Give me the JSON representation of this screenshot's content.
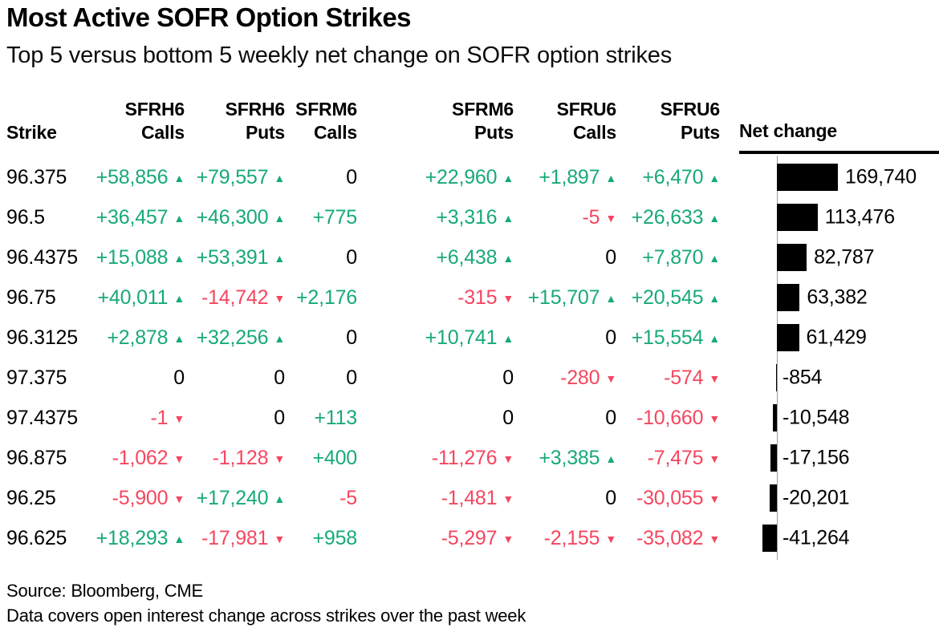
{
  "header": {
    "title": "Most Active SOFR Option Strikes",
    "subtitle": "Top 5 versus bottom 5 weekly net change on SOFR option strikes"
  },
  "table": {
    "columns": [
      {
        "line1": "",
        "line2": "Strike"
      },
      {
        "line1": "SFRH6",
        "line2": "Calls"
      },
      {
        "line1": "SFRH6",
        "line2": "Puts"
      },
      {
        "line1": "SFRM6",
        "line2": "Calls"
      },
      {
        "line1": "SFRM6",
        "line2": "Puts"
      },
      {
        "line1": "SFRU6",
        "line2": "Calls"
      },
      {
        "line1": "SFRU6",
        "line2": "Puts"
      },
      {
        "line1": "",
        "line2": "Net change"
      }
    ],
    "rows": [
      {
        "strike": "96.375",
        "cells": [
          {
            "v": "+58,856",
            "a": "up"
          },
          {
            "v": "+79,557",
            "a": "up"
          },
          {
            "v": "0",
            "a": ""
          },
          {
            "v": "+22,960",
            "a": "up"
          },
          {
            "v": "+1,897",
            "a": "up"
          },
          {
            "v": "+6,470",
            "a": "up"
          }
        ],
        "net": 169740,
        "net_label": "169,740"
      },
      {
        "strike": "96.5",
        "cells": [
          {
            "v": "+36,457",
            "a": "up"
          },
          {
            "v": "+46,300",
            "a": "up"
          },
          {
            "v": "+775",
            "a": ""
          },
          {
            "v": "+3,316",
            "a": "up"
          },
          {
            "v": "-5",
            "a": "down"
          },
          {
            "v": "+26,633",
            "a": "up"
          }
        ],
        "net": 113476,
        "net_label": "113,476"
      },
      {
        "strike": "96.4375",
        "cells": [
          {
            "v": "+15,088",
            "a": "up"
          },
          {
            "v": "+53,391",
            "a": "up"
          },
          {
            "v": "0",
            "a": ""
          },
          {
            "v": "+6,438",
            "a": "up"
          },
          {
            "v": "0",
            "a": ""
          },
          {
            "v": "+7,870",
            "a": "up"
          }
        ],
        "net": 82787,
        "net_label": "82,787"
      },
      {
        "strike": "96.75",
        "cells": [
          {
            "v": "+40,011",
            "a": "up"
          },
          {
            "v": "-14,742",
            "a": "down"
          },
          {
            "v": "+2,176",
            "a": ""
          },
          {
            "v": "-315",
            "a": "down"
          },
          {
            "v": "+15,707",
            "a": "up"
          },
          {
            "v": "+20,545",
            "a": "up"
          }
        ],
        "net": 63382,
        "net_label": "63,382"
      },
      {
        "strike": "96.3125",
        "cells": [
          {
            "v": "+2,878",
            "a": "up"
          },
          {
            "v": "+32,256",
            "a": "up"
          },
          {
            "v": "0",
            "a": ""
          },
          {
            "v": "+10,741",
            "a": "up"
          },
          {
            "v": "0",
            "a": ""
          },
          {
            "v": "+15,554",
            "a": "up"
          }
        ],
        "net": 61429,
        "net_label": "61,429"
      },
      {
        "strike": "97.375",
        "cells": [
          {
            "v": "0",
            "a": ""
          },
          {
            "v": "0",
            "a": ""
          },
          {
            "v": "0",
            "a": ""
          },
          {
            "v": "0",
            "a": ""
          },
          {
            "v": "-280",
            "a": "down"
          },
          {
            "v": "-574",
            "a": "down"
          }
        ],
        "net": -854,
        "net_label": "-854"
      },
      {
        "strike": "97.4375",
        "cells": [
          {
            "v": "-1",
            "a": "down"
          },
          {
            "v": "0",
            "a": ""
          },
          {
            "v": "+113",
            "a": ""
          },
          {
            "v": "0",
            "a": ""
          },
          {
            "v": "0",
            "a": ""
          },
          {
            "v": "-10,660",
            "a": "down"
          }
        ],
        "net": -10548,
        "net_label": "-10,548"
      },
      {
        "strike": "96.875",
        "cells": [
          {
            "v": "-1,062",
            "a": "down"
          },
          {
            "v": "-1,128",
            "a": "down"
          },
          {
            "v": "+400",
            "a": ""
          },
          {
            "v": "-11,276",
            "a": "down"
          },
          {
            "v": "+3,385",
            "a": "up"
          },
          {
            "v": "-7,475",
            "a": "down"
          }
        ],
        "net": -17156,
        "net_label": "-17,156"
      },
      {
        "strike": "96.25",
        "cells": [
          {
            "v": "-5,900",
            "a": "down"
          },
          {
            "v": "+17,240",
            "a": "up"
          },
          {
            "v": "-5",
            "a": ""
          },
          {
            "v": "-1,481",
            "a": "down"
          },
          {
            "v": "0",
            "a": ""
          },
          {
            "v": "-30,055",
            "a": "down"
          }
        ],
        "net": -20201,
        "net_label": "-20,201"
      },
      {
        "strike": "96.625",
        "cells": [
          {
            "v": "+18,293",
            "a": "up"
          },
          {
            "v": "-17,981",
            "a": "down"
          },
          {
            "v": "+958",
            "a": ""
          },
          {
            "v": "-5,297",
            "a": "down"
          },
          {
            "v": "-2,155",
            "a": "down"
          },
          {
            "v": "-35,082",
            "a": "down"
          }
        ],
        "net": -41264,
        "net_label": "-41,264"
      }
    ]
  },
  "chart_data": {
    "type": "bar",
    "orientation": "horizontal",
    "title": "Most Active SOFR Option Strikes",
    "subtitle": "Top 5 versus bottom 5 weekly net change on SOFR option strikes",
    "categories": [
      "96.375",
      "96.5",
      "96.4375",
      "96.75",
      "96.3125",
      "97.375",
      "97.4375",
      "96.875",
      "96.25",
      "96.625"
    ],
    "series": [
      {
        "name": "SFRH6 Calls",
        "values": [
          58856,
          36457,
          15088,
          40011,
          2878,
          0,
          -1,
          -1062,
          -5900,
          18293
        ]
      },
      {
        "name": "SFRH6 Puts",
        "values": [
          79557,
          46300,
          53391,
          -14742,
          32256,
          0,
          0,
          -1128,
          17240,
          -17981
        ]
      },
      {
        "name": "SFRM6 Calls",
        "values": [
          0,
          775,
          0,
          2176,
          0,
          0,
          113,
          400,
          -5,
          958
        ]
      },
      {
        "name": "SFRM6 Puts",
        "values": [
          22960,
          3316,
          6438,
          -315,
          10741,
          0,
          0,
          -11276,
          -1481,
          -5297
        ]
      },
      {
        "name": "SFRU6 Calls",
        "values": [
          1897,
          -5,
          0,
          15707,
          0,
          -280,
          0,
          3385,
          0,
          -2155
        ]
      },
      {
        "name": "SFRU6 Puts",
        "values": [
          6470,
          26633,
          7870,
          20545,
          15554,
          -574,
          -10660,
          -7475,
          -30055,
          -35082
        ]
      },
      {
        "name": "Net change",
        "values": [
          169740,
          113476,
          82787,
          63382,
          61429,
          -854,
          -10548,
          -17156,
          -20201,
          -41264
        ]
      }
    ],
    "bar_column": {
      "label": "Net change",
      "max_abs": 169740,
      "zero_line": true,
      "bar_color": "#000000"
    },
    "legend": "none",
    "grid": "off"
  },
  "footer": {
    "source": "Source: Bloomberg, CME",
    "note": "Data covers open interest change across strikes over the past week"
  },
  "colors": {
    "positive": "#18a97b",
    "negative": "#f5465f",
    "bar": "#000000",
    "axis": "#9c9c9c"
  },
  "icons": {
    "up": "▲",
    "down": "▼"
  }
}
